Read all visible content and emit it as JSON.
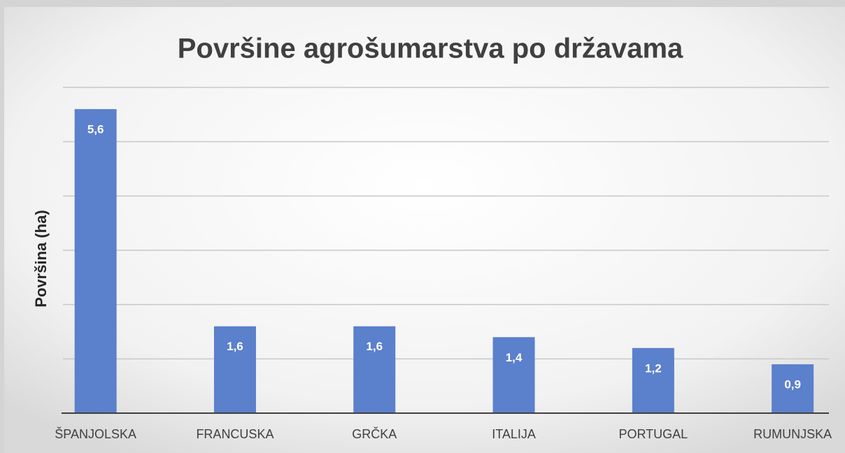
{
  "chart_data": {
    "type": "bar",
    "title": "Površine agrošumarstva po državama",
    "ylabel": "Površina (ha)",
    "categories": [
      "ŠPANJOLSKA",
      "FRANCUSKA",
      "GRČKA",
      "ITALIJA",
      "PORTUGAL",
      "RUMUNJSKA"
    ],
    "values": [
      5.6,
      1.6,
      1.6,
      1.4,
      1.2,
      0.9
    ],
    "value_labels": [
      "5,6",
      "1,6",
      "1,6",
      "1,4",
      "1,2",
      "0,9"
    ],
    "color": "#5b80cc",
    "ylim": [
      0,
      6
    ],
    "yticks": [
      0,
      1,
      2,
      3,
      4,
      5,
      6
    ],
    "grid": true
  }
}
